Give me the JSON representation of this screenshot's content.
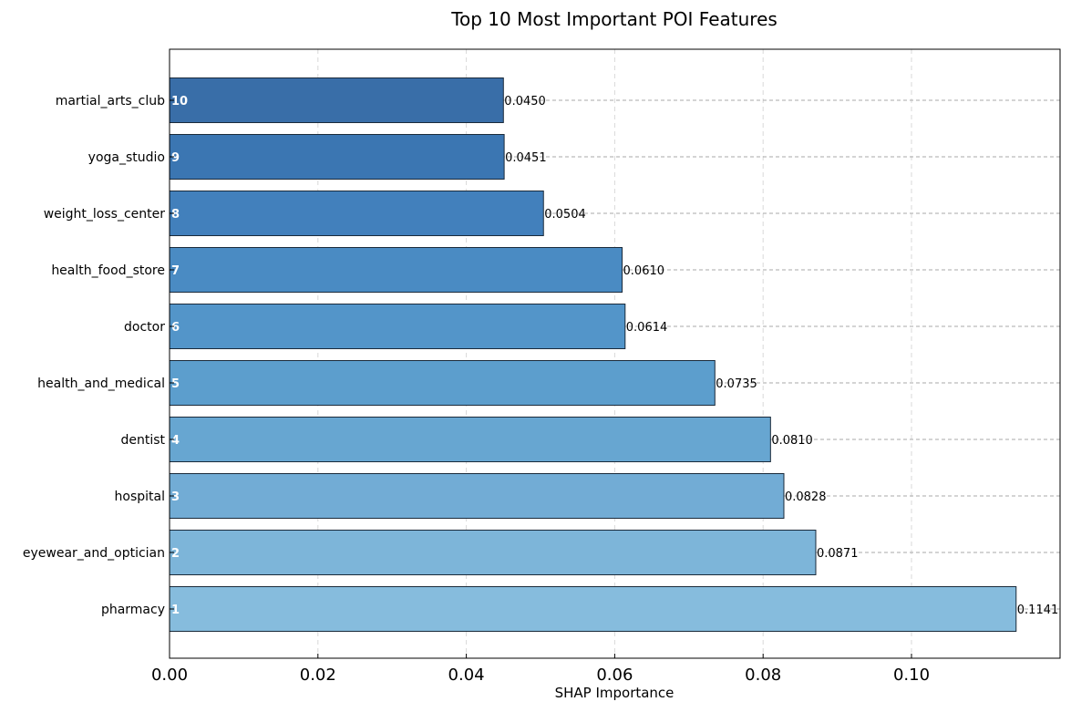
{
  "chart_data": {
    "type": "bar",
    "orientation": "horizontal",
    "title": "Top 10 Most Important POI Features",
    "xlabel": "SHAP Importance",
    "ylabel": "",
    "xlim": [
      0,
      0.12
    ],
    "xticks": [
      "0.00",
      "0.02",
      "0.04",
      "0.06",
      "0.08",
      "0.10"
    ],
    "xtick_values": [
      0,
      0.02,
      0.04,
      0.06,
      0.08,
      0.1
    ],
    "grid": true,
    "legend": "none",
    "categories": [
      "pharmacy",
      "eyewear_and_optician",
      "hospital",
      "dentist",
      "health_and_medical",
      "doctor",
      "health_food_store",
      "weight_loss_center",
      "yoga_studio",
      "martial_arts_club"
    ],
    "values": [
      0.1141,
      0.0871,
      0.0828,
      0.081,
      0.0735,
      0.0614,
      0.061,
      0.0504,
      0.0451,
      0.045
    ],
    "value_labels": [
      "0.1141",
      "0.0871",
      "0.0828",
      "0.0810",
      "0.0735",
      "0.0614",
      "0.0610",
      "0.0504",
      "0.0451",
      "0.0450"
    ],
    "rank_labels": [
      "1",
      "2",
      "3",
      "4",
      "5",
      "6",
      "7",
      "8",
      "9",
      "10"
    ],
    "colors": {
      "bars_light_to_dark": [
        "#86bcdd",
        "#7db5d9",
        "#72acd5",
        "#67a6d1",
        "#5c9ecd",
        "#5395c9",
        "#4a8bc3",
        "#4280bc",
        "#3b76b2",
        "#396ea8"
      ],
      "bar_edge": "#1a2a3a",
      "grid": "#aaaaaa",
      "text": "#000000",
      "rank_text": "#ffffff"
    }
  }
}
